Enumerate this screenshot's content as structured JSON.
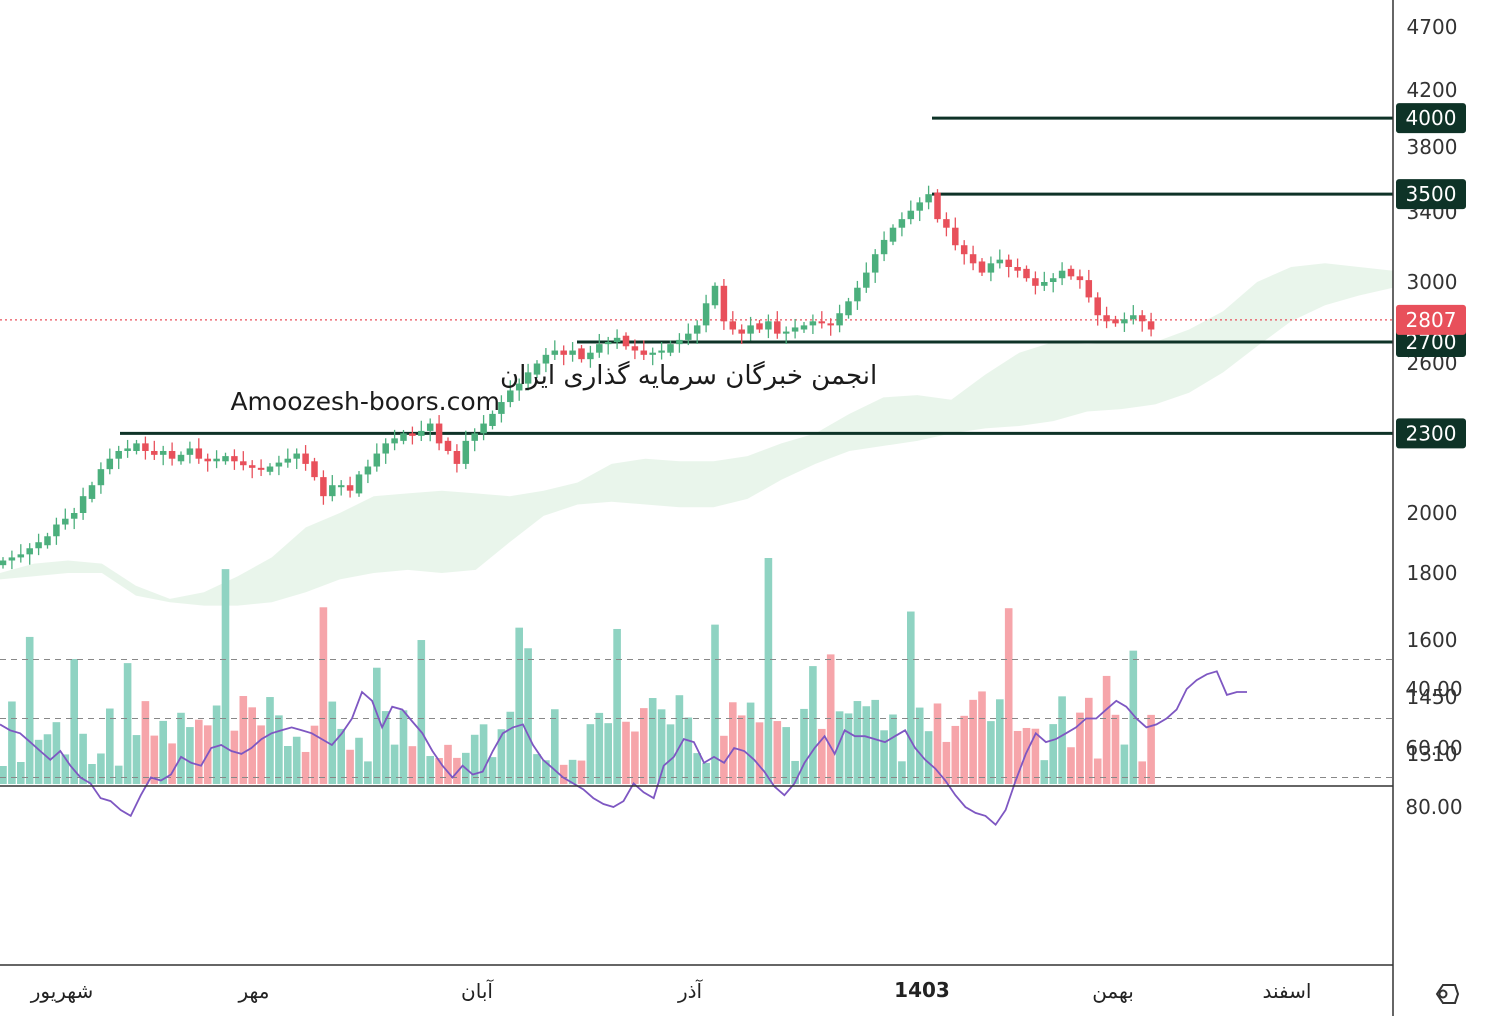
{
  "chart_data": [
    {
      "type": "candlestick",
      "title": "",
      "watermark": {
        "line1": "انجمن خبرگان سرمایه گذاری ایران",
        "line2": "Amoozesh-boors.com"
      },
      "x_labels": [
        "شهریور",
        "مهر",
        "آبان",
        "آذر",
        "1403",
        "بهمن",
        "اسفند"
      ],
      "y_ticks": [
        4700,
        4200,
        3800,
        3400,
        3000,
        2600,
        2000,
        1800,
        1600,
        1450,
        1310
      ],
      "y_scale": "log",
      "last_price": 2807,
      "last_price_label": "2807",
      "up_color": "#4caf7d",
      "down_color": "#e8505b",
      "level_color": "#0e3327",
      "levels": [
        {
          "value": 4000,
          "label": "4000"
        },
        {
          "value": 3500,
          "label": "3500"
        },
        {
          "value": 2700,
          "label": "2700"
        },
        {
          "value": 2300,
          "label": "2300"
        }
      ],
      "cloud_upper": [
        1800,
        1830,
        1840,
        1830,
        1760,
        1720,
        1740,
        1790,
        1850,
        1950,
        2000,
        2060,
        2070,
        2080,
        2070,
        2060,
        2080,
        2110,
        2180,
        2200,
        2190,
        2190,
        2210,
        2260,
        2300,
        2380,
        2450,
        2460,
        2440,
        2550,
        2650,
        2700,
        2690,
        2700,
        2700,
        2760,
        2850,
        3000,
        3080,
        3100,
        3080,
        3060
      ],
      "cloud_lower": [
        1780,
        1790,
        1800,
        1800,
        1730,
        1710,
        1700,
        1700,
        1710,
        1740,
        1780,
        1800,
        1810,
        1800,
        1810,
        1900,
        1990,
        2030,
        2040,
        2030,
        2020,
        2020,
        2050,
        2120,
        2180,
        2230,
        2250,
        2270,
        2300,
        2320,
        2330,
        2350,
        2390,
        2400,
        2420,
        2470,
        2560,
        2680,
        2800,
        2880,
        2930,
        2970
      ]
    },
    {
      "type": "bar",
      "title": "",
      "up_color": "#8fd3c2",
      "down_color": "#f6a5aa"
    },
    {
      "type": "line",
      "title": "",
      "y_ticks": [
        80,
        60,
        40
      ],
      "y_tick_labels": [
        "80.00",
        "60.00",
        "40.00"
      ],
      "bands": [
        70,
        50,
        30
      ],
      "line_color": "#7e57c2",
      "band_fill": "#efeafa",
      "values": [
        52,
        54,
        55,
        58,
        61,
        64,
        61,
        66,
        70,
        72,
        77,
        78,
        81,
        83,
        76,
        70,
        71,
        69,
        63,
        65,
        66,
        60,
        59,
        61,
        62,
        60,
        57,
        55,
        54,
        53,
        54,
        55,
        57,
        59,
        55,
        50,
        41,
        44,
        53,
        46,
        47,
        51,
        55,
        61,
        66,
        70,
        66,
        69,
        68,
        61,
        55,
        53,
        52,
        59,
        64,
        67,
        70,
        72,
        74,
        77,
        79,
        80,
        78,
        72,
        75,
        77,
        66,
        63,
        57,
        58,
        65,
        63,
        65,
        60,
        61,
        64,
        68,
        73,
        76,
        72,
        65,
        60,
        56,
        62,
        54,
        56,
        56,
        57,
        58,
        56,
        54,
        60,
        64,
        67,
        71,
        76,
        80,
        82,
        83,
        86,
        81,
        71,
        62,
        55,
        58,
        57,
        55,
        53,
        50,
        50,
        47,
        44,
        46,
        50,
        53,
        52,
        50,
        47,
        40,
        37,
        35,
        34,
        42,
        41,
        41
      ]
    }
  ],
  "ui": {
    "settings_icon": "hexagon-settings-icon"
  }
}
